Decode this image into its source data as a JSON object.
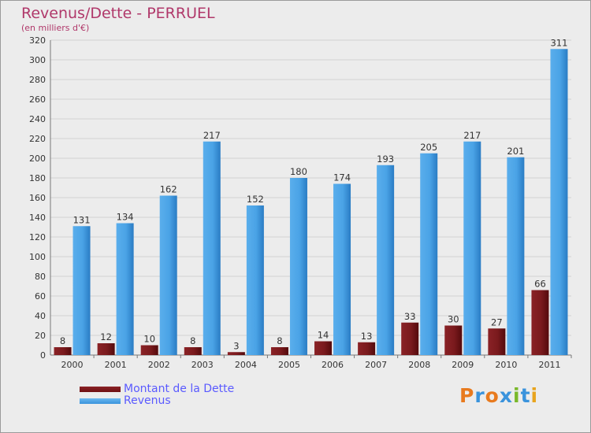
{
  "colors": {
    "dette": "#6e0f12",
    "revenus": "#3a93dc",
    "title": "#b0386a",
    "legend_text": "#5a5aff"
  },
  "logo": "Proxiti",
  "chart_data": {
    "type": "bar",
    "title": "Revenus/Dette - PERRUEL",
    "subtitle": "(en milliers d'€)",
    "categories": [
      "2000",
      "2001",
      "2002",
      "2003",
      "2004",
      "2005",
      "2006",
      "2007",
      "2008",
      "2009",
      "2010",
      "2011"
    ],
    "series": [
      {
        "name": "Montant de la Dette",
        "values": [
          8,
          12,
          10,
          8,
          3,
          8,
          14,
          13,
          33,
          30,
          27,
          66
        ]
      },
      {
        "name": "Revenus",
        "values": [
          131,
          134,
          162,
          217,
          152,
          180,
          174,
          193,
          205,
          217,
          201,
          311
        ]
      }
    ],
    "ylim": [
      0,
      320
    ],
    "yticks": [
      0,
      20,
      40,
      60,
      80,
      100,
      120,
      140,
      160,
      180,
      200,
      220,
      240,
      260,
      280,
      300,
      320
    ],
    "grid": true,
    "legend": "bottom-left"
  }
}
